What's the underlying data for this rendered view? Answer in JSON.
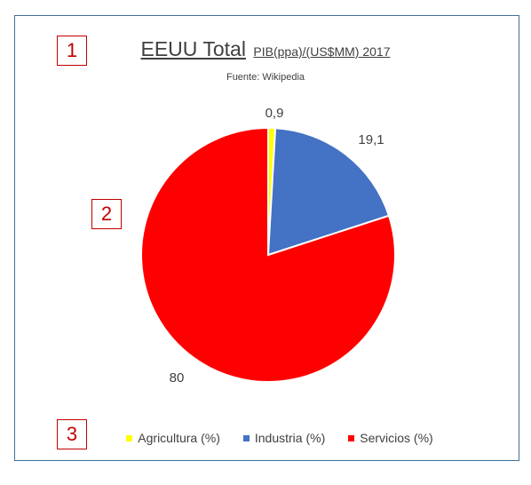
{
  "markers": {
    "m1": "1",
    "m2": "2",
    "m3": "3"
  },
  "chart_data": {
    "type": "pie",
    "title": "EEUU Total",
    "subtitle": "PIB(ppa)/(US$MM) 2017",
    "source": "Fuente: Wikipedia",
    "slices": [
      {
        "name": "Agricultura (%)",
        "value": 0.9,
        "label": "0,9",
        "color": "#ffff00"
      },
      {
        "name": "Industria (%)",
        "value": 19.1,
        "label": "19,1",
        "color": "#4472c4"
      },
      {
        "name": "Servicios (%)",
        "value": 80,
        "label": "80",
        "color": "#ff0000"
      }
    ],
    "legend_position": "bottom"
  }
}
